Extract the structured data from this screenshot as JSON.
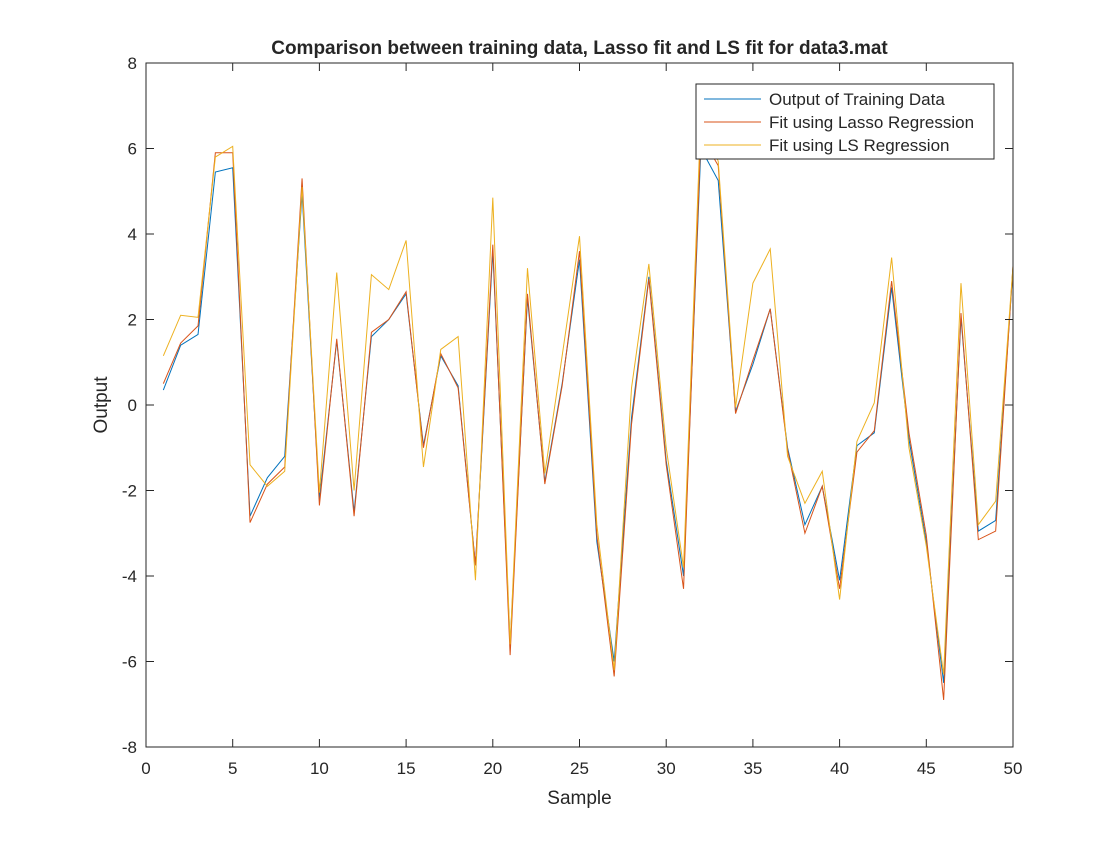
{
  "chart_data": {
    "type": "line",
    "title": "Comparison between training data, Lasso fit and LS fit for data3.mat",
    "xlabel": "Sample",
    "ylabel": "Output",
    "xlim": [
      0,
      50
    ],
    "ylim": [
      -8,
      8
    ],
    "xticks": [
      0,
      5,
      10,
      15,
      20,
      25,
      30,
      35,
      40,
      45,
      50
    ],
    "yticks": [
      -8,
      -6,
      -4,
      -2,
      0,
      2,
      4,
      6,
      8
    ],
    "grid": false,
    "legend_position": "top-right",
    "x": [
      1,
      2,
      3,
      4,
      5,
      6,
      7,
      8,
      9,
      10,
      11,
      12,
      13,
      14,
      15,
      16,
      17,
      18,
      19,
      20,
      21,
      22,
      23,
      24,
      25,
      26,
      27,
      28,
      29,
      30,
      31,
      32,
      33,
      34,
      35,
      36,
      37,
      38,
      39,
      40,
      41,
      42,
      43,
      44,
      45,
      46,
      47,
      48,
      49,
      50
    ],
    "series": [
      {
        "name": "Output of Training Data",
        "color": "#0072BD",
        "values": [
          0.35,
          1.4,
          1.65,
          5.45,
          5.55,
          -2.6,
          -1.7,
          -1.2,
          4.95,
          -2.2,
          1.5,
          -2.5,
          1.6,
          2.0,
          2.6,
          -0.95,
          1.15,
          0.45,
          -3.75,
          3.6,
          -5.6,
          2.5,
          -1.8,
          0.5,
          3.4,
          -3.2,
          -6.0,
          -0.3,
          3.0,
          -1.3,
          -4.0,
          6.0,
          5.25,
          -0.15,
          0.95,
          2.25,
          -1.0,
          -2.8,
          -1.9,
          -4.1,
          -0.95,
          -0.65,
          2.75,
          -0.8,
          -3.2,
          -6.5,
          2.05,
          -2.95,
          -2.7,
          3.2
        ]
      },
      {
        "name": "Fit using Lasso Regression",
        "color": "#D95319",
        "values": [
          0.5,
          1.45,
          1.85,
          5.9,
          5.9,
          -2.75,
          -1.85,
          -1.45,
          5.3,
          -2.35,
          1.55,
          -2.6,
          1.7,
          2.0,
          2.65,
          -1.0,
          1.2,
          0.4,
          -3.75,
          3.75,
          -5.85,
          2.6,
          -1.85,
          0.45,
          3.6,
          -3.05,
          -6.35,
          -0.45,
          2.95,
          -1.4,
          -4.3,
          6.3,
          5.6,
          -0.2,
          1.05,
          2.25,
          -1.05,
          -3.0,
          -1.9,
          -4.3,
          -1.1,
          -0.6,
          2.9,
          -0.65,
          -3.05,
          -6.9,
          2.15,
          -3.15,
          -2.95,
          3.25
        ]
      },
      {
        "name": "Fit using LS Regression",
        "color": "#EDB120",
        "values": [
          1.15,
          2.1,
          2.05,
          5.8,
          6.05,
          -1.4,
          -1.9,
          -1.55,
          5.1,
          -2.05,
          3.1,
          -2.0,
          3.05,
          2.7,
          3.85,
          -1.45,
          1.3,
          1.6,
          -4.1,
          4.85,
          -5.6,
          3.2,
          -1.6,
          1.15,
          3.95,
          -2.8,
          -6.2,
          0.4,
          3.3,
          -1.0,
          -3.8,
          6.8,
          5.7,
          -0.05,
          2.85,
          3.65,
          -1.2,
          -2.3,
          -1.55,
          -4.55,
          -0.85,
          0.05,
          3.45,
          -1.0,
          -3.3,
          -6.3,
          2.85,
          -2.8,
          -2.25,
          3.25
        ]
      }
    ]
  }
}
